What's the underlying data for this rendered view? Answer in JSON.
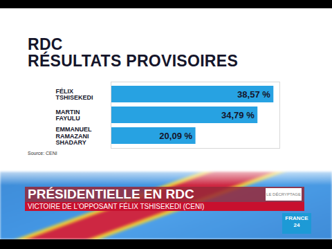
{
  "chart_data": {
    "type": "bar",
    "orientation": "horizontal",
    "title": "RDC",
    "subtitle": "RÉSULTATS PROVISOIRES",
    "caption": "Source: CENI",
    "categories": [
      "FÉLIX TSHISEKEDI",
      "MARTIN FAYULU",
      "EMMANUEL RAMAZANI SHADARY"
    ],
    "values": [
      38.57,
      34.79,
      20.09
    ],
    "value_labels": [
      "38,57 %",
      "34,79 %",
      "20,09 %"
    ],
    "color": "#27a2e2",
    "xlim": [
      0,
      40
    ],
    "data_labels": true,
    "tick_labels": "y"
  },
  "banner": {
    "headline": "PRÉSIDENTIELLE EN RDC",
    "subheadline": "VICTOIRE DE L'OPPOSANT FÉLIX TSHISEKEDI (CENI)",
    "section": "LE DÉCRYPTAGE",
    "logo": "FRANCE 24"
  }
}
